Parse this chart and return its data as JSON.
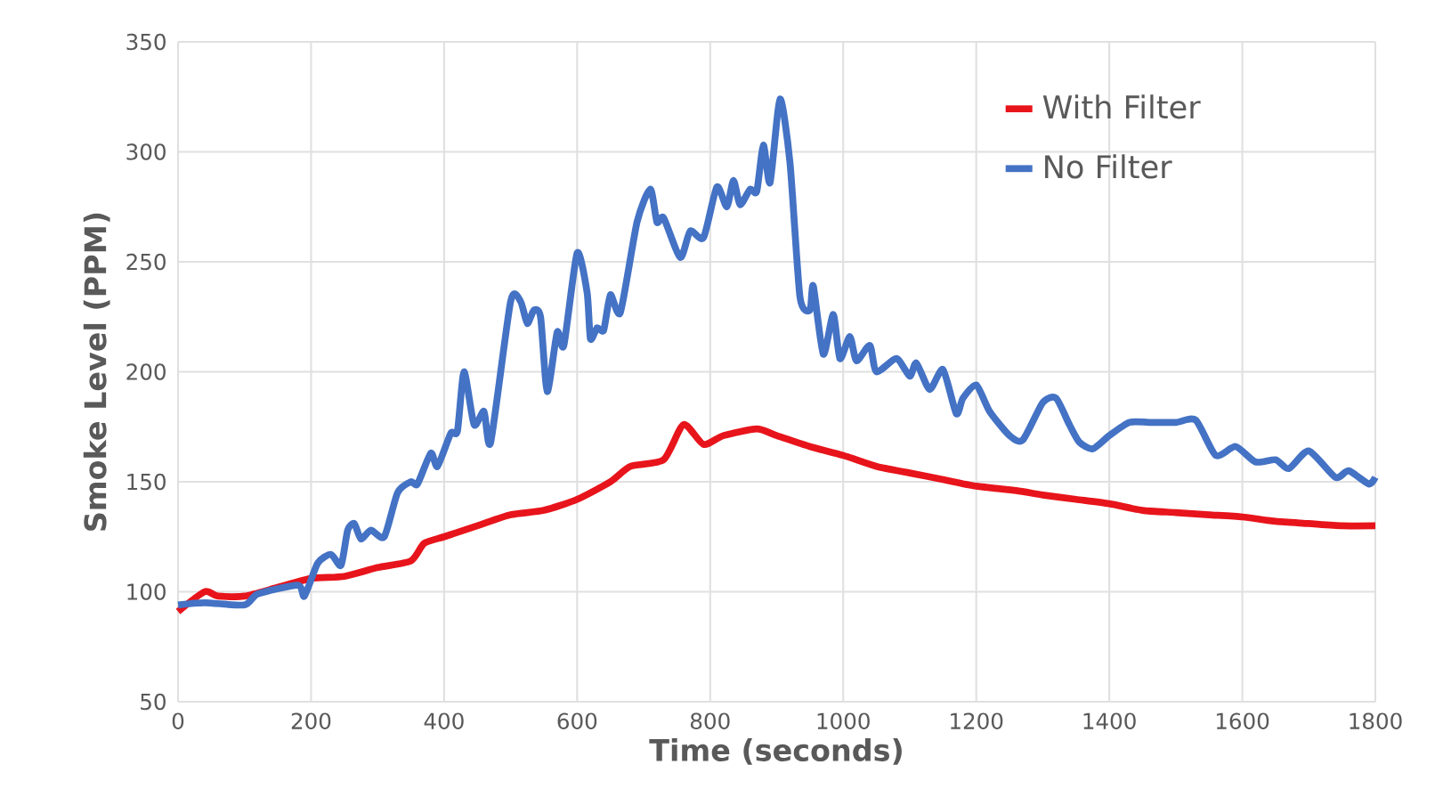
{
  "chart_data": {
    "type": "line",
    "xlabel": "Time (seconds)",
    "ylabel": "Smoke Level (PPM)",
    "xlim": [
      0,
      1800
    ],
    "ylim": [
      50,
      350
    ],
    "xticks": [
      0,
      200,
      400,
      600,
      800,
      1000,
      1200,
      1400,
      1600,
      1800
    ],
    "yticks": [
      50,
      100,
      150,
      200,
      250,
      300,
      350
    ],
    "grid": true,
    "legend": "top right",
    "marker": "none",
    "line_style": "solid",
    "series": [
      {
        "name": "With Filter",
        "color": "#e8141b",
        "x": [
          0,
          40,
          60,
          100,
          150,
          200,
          250,
          300,
          350,
          370,
          400,
          450,
          500,
          550,
          600,
          650,
          680,
          730,
          760,
          790,
          820,
          870,
          900,
          950,
          1000,
          1050,
          1100,
          1150,
          1200,
          1260,
          1300,
          1350,
          1400,
          1450,
          1500,
          1550,
          1600,
          1650,
          1700,
          1750,
          1800
        ],
        "values": [
          91,
          100,
          98,
          98,
          102,
          106,
          107,
          111,
          114,
          122,
          125,
          130,
          135,
          137,
          142,
          150,
          157,
          160,
          176,
          167,
          171,
          174,
          171,
          166,
          162,
          157,
          154,
          151,
          148,
          146,
          144,
          142,
          140,
          137,
          136,
          135,
          134,
          132,
          131,
          130,
          130
        ]
      },
      {
        "name": "No Filter",
        "color": "#4472c4",
        "x": [
          0,
          40,
          100,
          120,
          180,
          190,
          210,
          230,
          245,
          255,
          265,
          275,
          290,
          310,
          330,
          350,
          360,
          380,
          390,
          410,
          420,
          430,
          445,
          460,
          470,
          500,
          515,
          525,
          535,
          545,
          555,
          570,
          580,
          600,
          615,
          620,
          630,
          640,
          650,
          665,
          690,
          710,
          720,
          730,
          755,
          770,
          790,
          810,
          825,
          835,
          845,
          860,
          870,
          880,
          890,
          905,
          920,
          935,
          950,
          955,
          970,
          985,
          995,
          1010,
          1020,
          1040,
          1050,
          1080,
          1100,
          1110,
          1130,
          1150,
          1170,
          1180,
          1200,
          1220,
          1250,
          1270,
          1300,
          1320,
          1340,
          1355,
          1375,
          1400,
          1430,
          1460,
          1500,
          1530,
          1560,
          1590,
          1620,
          1650,
          1670,
          1700,
          1740,
          1760,
          1790,
          1800
        ],
        "values": [
          94,
          95,
          94,
          99,
          103,
          98,
          113,
          117,
          112,
          128,
          131,
          124,
          128,
          125,
          145,
          150,
          149,
          163,
          157,
          172,
          173,
          200,
          176,
          182,
          168,
          232,
          232,
          222,
          228,
          225,
          191,
          218,
          212,
          254,
          236,
          215,
          220,
          219,
          235,
          227,
          268,
          283,
          268,
          270,
          252,
          264,
          261,
          284,
          275,
          287,
          276,
          283,
          282,
          303,
          286,
          324,
          295,
          234,
          228,
          239,
          208,
          226,
          206,
          216,
          205,
          212,
          200,
          206,
          198,
          204,
          192,
          201,
          181,
          188,
          194,
          182,
          171,
          169,
          186,
          188,
          176,
          168,
          165,
          171,
          177,
          177,
          177,
          178,
          162,
          166,
          159,
          160,
          156,
          164,
          152,
          155,
          149,
          152
        ]
      }
    ]
  }
}
